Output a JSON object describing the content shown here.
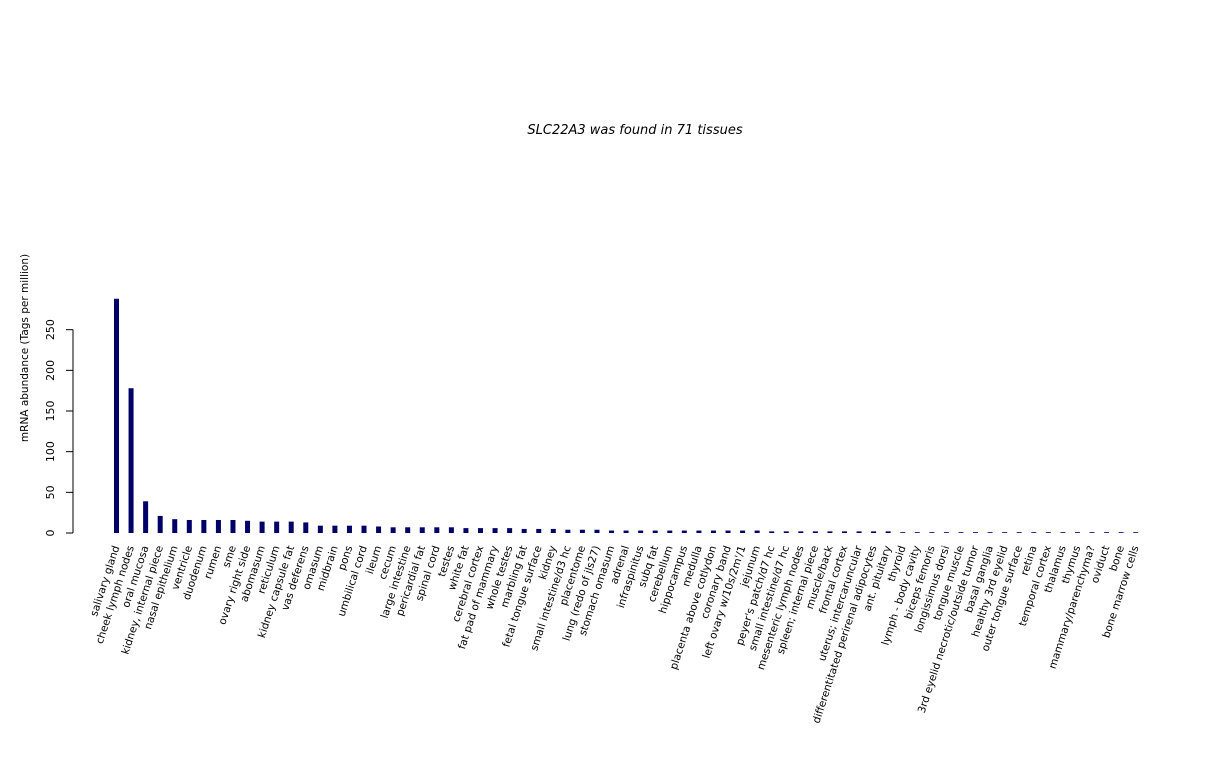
{
  "chart_data": {
    "type": "bar",
    "title": "SLC22A3  was found in  71  tissues",
    "xlabel": "",
    "ylabel": "mRNA abundance (Tags per million)",
    "ylim": [
      0,
      290
    ],
    "yticks": [
      0,
      50,
      100,
      150,
      200,
      250
    ],
    "ytick_labels": [
      "0",
      "50",
      "100",
      "150",
      "200",
      "250"
    ],
    "grid": false,
    "bar_color": "#000066",
    "categories": [
      "salivary gland",
      "cheek lymph nodes",
      "oral mucosa",
      "kidney, internal piece",
      "nasal epithelium",
      "ventricle",
      "duodenum",
      "rumen",
      "sme",
      "ovary right side",
      "abomasum",
      "reticulum",
      "kidney capsule fat",
      "vas deferens",
      "omasum",
      "midbrain",
      "pons",
      "umbilical cord",
      "ileum",
      "cecum",
      "large intestine",
      "pericardial fat",
      "spinal cord",
      "testes",
      "white fat",
      "cerebral cortex",
      "fat pad of mammary",
      "whole testes",
      "marbling fat",
      "fetal tongue surface",
      "kidney",
      "small intestine/d3 hc",
      "placentome",
      "lung (redo of jls27)",
      "stomach omasum",
      "adrenal",
      "infraspinitus",
      "subq fat",
      "cerebellum",
      "hippocampus",
      "medulla",
      "placenta above cotlydon",
      "coronary band",
      "left ovary w/10s/2m'/1",
      "jejunum",
      "peyer's patch/d7 hc",
      "small intestine/d7 hc",
      "mesenteric lymph nodes",
      "spleen; internal piece",
      "muscle/back",
      "frontal cortex",
      "uterus; intercaruncular",
      "differentitated perirenal adipocytes",
      "ant. pituitary",
      "thyroid",
      "lymph - body cavity",
      "biceps femoris",
      "longissimus dorsi",
      "tongue muscle",
      "3rd eyelid necrotic/outside tumor",
      "basal ganglia",
      "healthy 3rd eyelid",
      "outer tongue surface",
      "retina",
      "temporal cortex",
      "thalamus",
      "thymus",
      "mammary/parenchyma?",
      "oviduct",
      "bone",
      "bone marrow cells"
    ],
    "values": [
      288,
      178,
      39,
      21,
      17,
      16,
      16,
      16,
      16,
      15,
      14,
      14,
      14,
      13,
      9,
      9,
      9,
      9,
      8,
      7,
      7,
      7,
      7,
      7,
      6,
      6,
      6,
      6,
      5,
      5,
      5,
      4,
      4,
      4,
      3,
      3,
      3,
      3,
      3,
      3,
      3,
      3,
      3,
      3,
      3,
      2,
      2,
      2,
      2,
      2,
      2,
      2,
      2,
      2,
      1,
      1,
      1,
      1,
      1,
      1,
      1,
      1,
      1,
      1,
      1,
      1,
      1,
      1,
      1,
      1,
      1
    ]
  }
}
